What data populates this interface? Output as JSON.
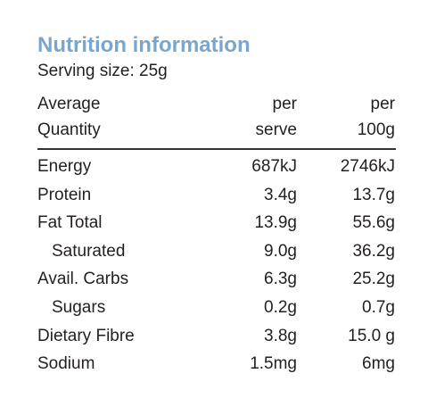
{
  "header": {
    "title": "Nutrition information",
    "serving": "Serving size: 25g"
  },
  "table": {
    "columns": [
      [
        "Average",
        "Quantity"
      ],
      [
        "per",
        "serve"
      ],
      [
        "per",
        "100g"
      ]
    ],
    "rows": [
      [
        "Energy",
        "687kJ",
        "2746kJ"
      ],
      [
        "Protein",
        "3.4g",
        "13.7g"
      ],
      [
        "Fat Total",
        "13.9g",
        "55.6g"
      ],
      [
        "Saturated",
        "9.0g",
        "36.2g"
      ],
      [
        "Avail. Carbs",
        "6.3g",
        "25.2g"
      ],
      [
        "Sugars",
        "0.2g",
        "0.7g"
      ],
      [
        "Dietary Fibre",
        "3.8g",
        "15.0 g"
      ],
      [
        "Sodium",
        "1.5mg",
        "6mg"
      ]
    ]
  }
}
